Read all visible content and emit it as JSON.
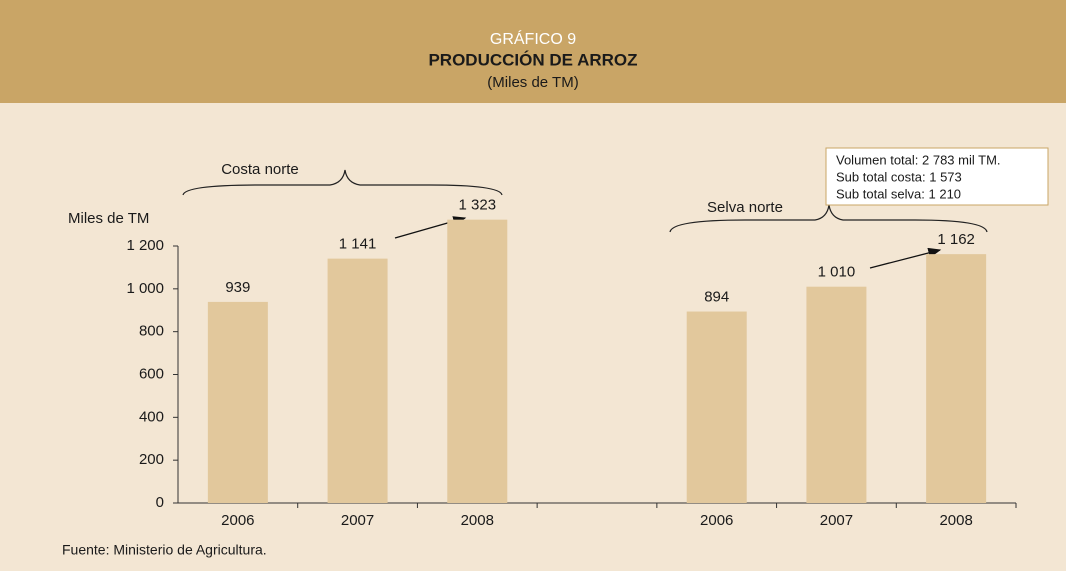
{
  "chart_data": {
    "type": "bar",
    "label": "GRÁFICO 9",
    "title": "PRODUCCIÓN DE ARROZ",
    "subtitle": "(Miles de TM)",
    "y_label": "Miles de TM",
    "categories": [
      "2006",
      "2007",
      "2008",
      null,
      "2006",
      "2007",
      "2008"
    ],
    "values": [
      939,
      1141,
      1323,
      null,
      894,
      1010,
      1162
    ],
    "value_labels": [
      "939",
      "1 141",
      "1 323",
      null,
      "894",
      "1 010",
      "1 162"
    ],
    "color": "#e2c89c",
    "ylim": [
      0,
      1200
    ],
    "yticks": [
      0,
      200,
      400,
      600,
      800,
      {
        "value": 1000,
        "label": "1 000"
      },
      {
        "value": 1200,
        "label": "1 200"
      }
    ],
    "group_labels": [
      "Costa norte",
      "Selva norte"
    ],
    "note": [
      "Volumen total: 2 783 mil TM.",
      "Sub total costa: 1 573",
      "Sub total selva: 1 210"
    ],
    "source": "Fuente: Ministerio de Agricultura."
  }
}
